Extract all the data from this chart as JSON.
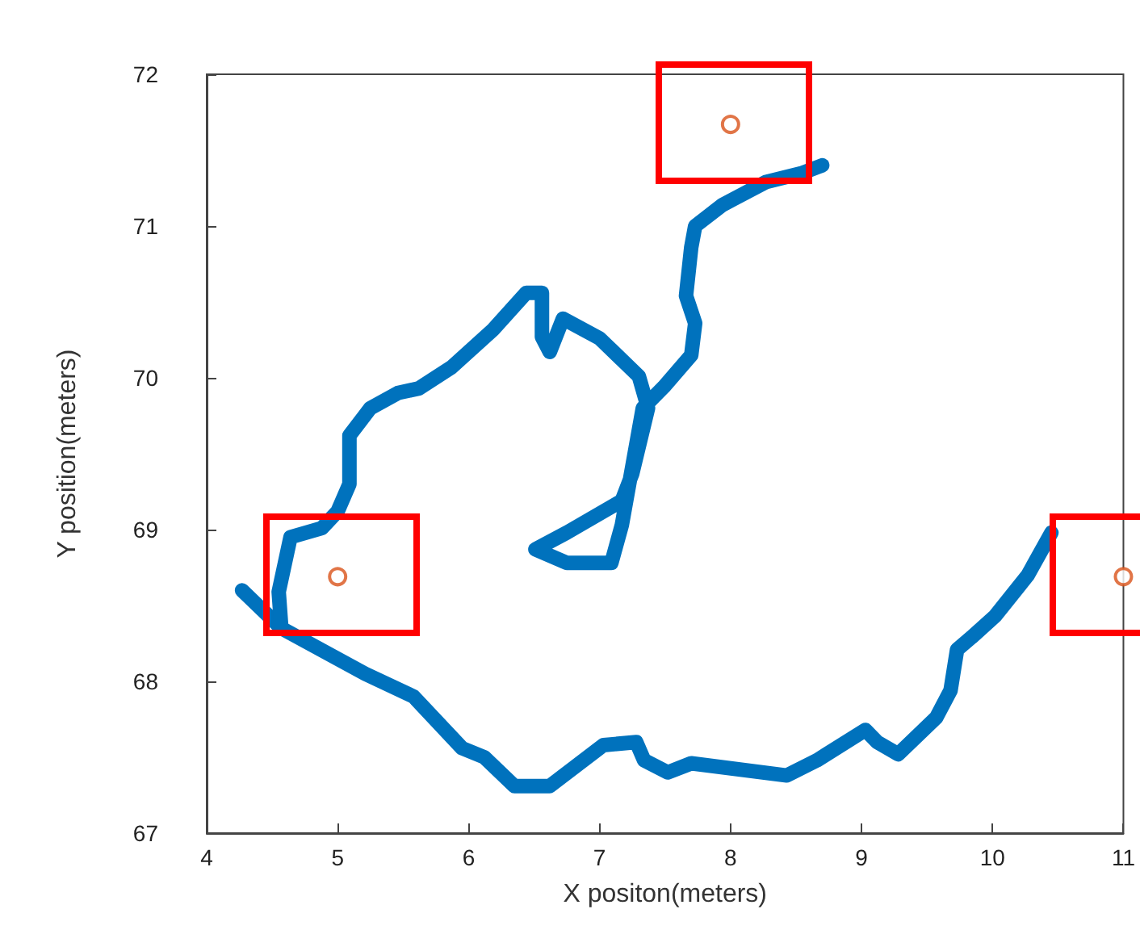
{
  "chart_data": {
    "type": "line",
    "xlabel": "X positon(meters)",
    "ylabel": "Y position(meters)",
    "xlim": [
      4,
      11
    ],
    "xticks": [
      4,
      5,
      6,
      7,
      8,
      9,
      10,
      11
    ],
    "ylim": [
      67,
      72
    ],
    "yticks": [
      67,
      68,
      69,
      70,
      71,
      72
    ],
    "grid": false,
    "series": [
      {
        "color": "#0072bd",
        "marker": "none",
        "line_style": "solid",
        "x": [
          4.27,
          4.57,
          5.21,
          5.58,
          5.95,
          6.12,
          6.35,
          6.62,
          7.03,
          7.28,
          7.34,
          7.52,
          7.7,
          8.43,
          8.66,
          9.03,
          9.12,
          9.28,
          9.57,
          9.68,
          9.73,
          9.84,
          10.02,
          10.27,
          10.45
        ],
        "values": [
          68.6,
          68.35,
          68.05,
          67.9,
          67.56,
          67.5,
          67.31,
          67.31,
          67.58,
          67.6,
          67.48,
          67.4,
          67.46,
          67.38,
          67.48,
          67.68,
          67.6,
          67.52,
          67.76,
          67.94,
          68.21,
          68.29,
          68.43,
          68.7,
          68.98
        ]
      },
      {
        "color": "#0072bd",
        "marker": "none",
        "line_style": "solid",
        "x": [
          4.57,
          4.55,
          4.64,
          4.88,
          5.0,
          5.09,
          5.09,
          5.25,
          5.46,
          5.62,
          5.87,
          6.19,
          6.44,
          6.56,
          6.56,
          6.62,
          6.72,
          7.0,
          7.3,
          7.37,
          7.25,
          7.17,
          6.75,
          6.51,
          6.75,
          7.09,
          7.17,
          7.33,
          7.49,
          7.7,
          7.73,
          7.66,
          7.7,
          7.73,
          7.94,
          8.27,
          8.55,
          8.7
        ],
        "values": [
          68.35,
          68.59,
          68.95,
          69.01,
          69.12,
          69.3,
          69.62,
          69.8,
          69.9,
          69.93,
          70.07,
          70.32,
          70.56,
          70.56,
          70.27,
          70.17,
          70.39,
          70.26,
          70.01,
          69.8,
          69.37,
          69.19,
          68.98,
          68.87,
          68.78,
          68.78,
          69.03,
          69.8,
          69.94,
          70.15,
          70.36,
          70.54,
          70.86,
          71.0,
          71.14,
          71.29,
          71.35,
          71.4
        ]
      },
      {
        "type": "scatter",
        "color": "#d95319",
        "marker": "circle",
        "x": [
          5.0,
          8.0,
          11.0
        ],
        "values": [
          68.69,
          71.67,
          68.69
        ]
      }
    ]
  }
}
